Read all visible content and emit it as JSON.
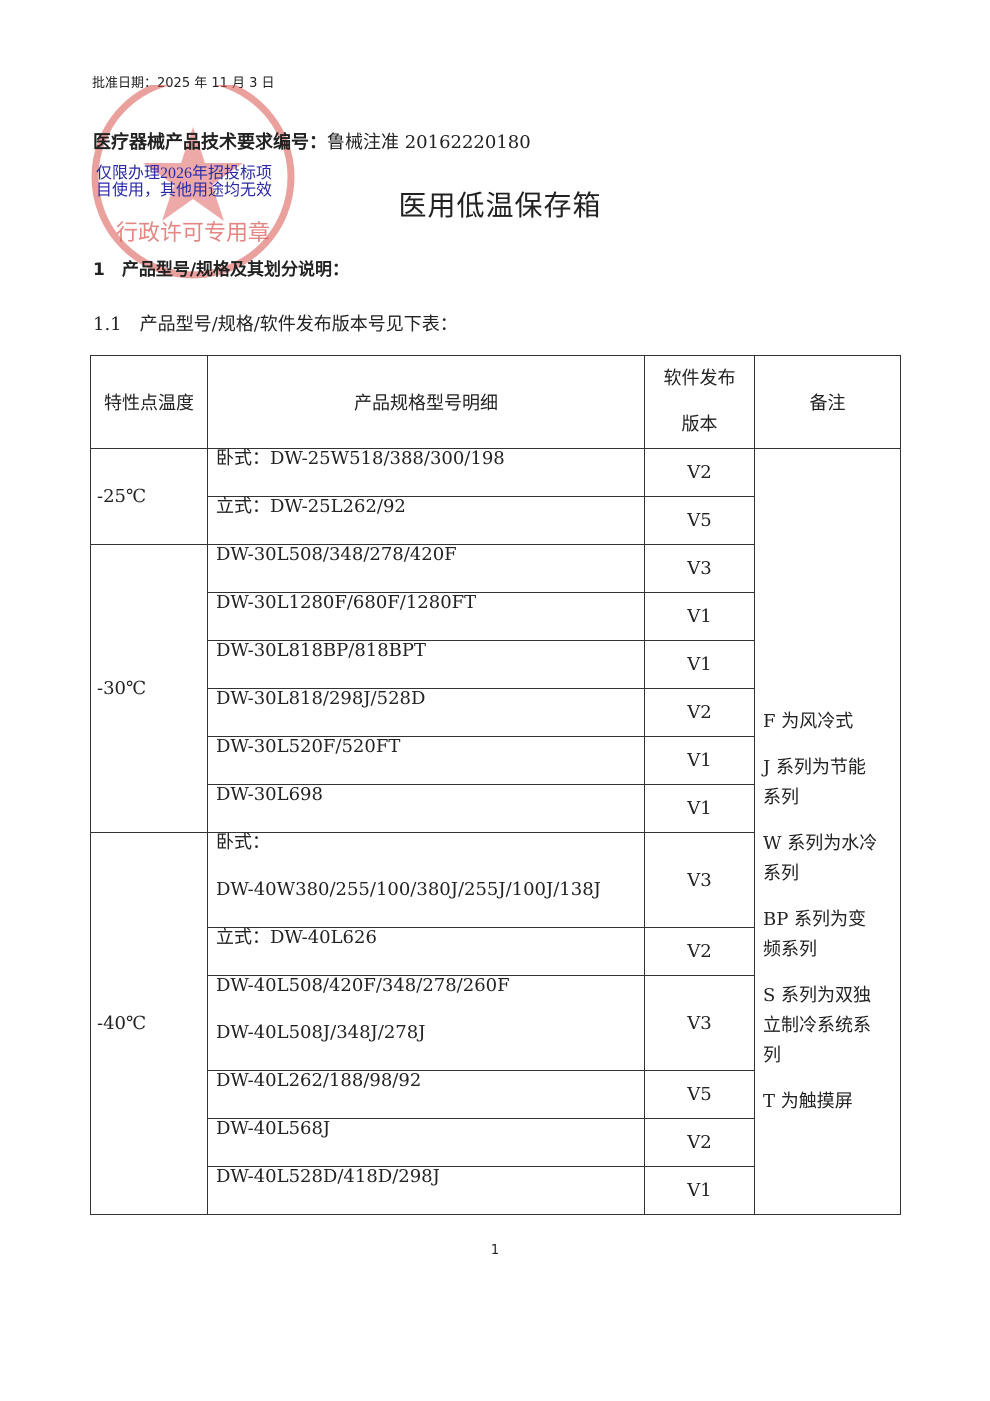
{
  "header": {
    "approval_date": "批准日期：2025 年 11 月 3 日",
    "doc_number_label": "医疗器械产品技术要求编号：",
    "doc_number": "鲁械注准 20162220180"
  },
  "stamp": {
    "text": "行政许可专用章",
    "notice": [
      "仅限办理2026年招投标项",
      "目使用，其他用途均无效"
    ]
  },
  "title": "医用低温保存箱",
  "section": {
    "heading": "1　产品型号/规格及其划分说明：",
    "subheading": "1.1　产品型号/规格/软件发布版本号见下表："
  },
  "table": {
    "headers": [
      "特性点温度",
      "产品规格型号明细",
      "软件发布版本",
      "备注"
    ],
    "groups": [
      {
        "temperature": "-25℃",
        "rows": [
          {
            "details": [
              "卧式：DW-25W518/388/300/198"
            ],
            "version": "V2"
          },
          {
            "details": [
              "立式：DW-25L262/92"
            ],
            "version": "V5"
          }
        ]
      },
      {
        "temperature": "-30℃",
        "rows": [
          {
            "details": [
              "DW-30L508/348/278/420F"
            ],
            "version": "V3"
          },
          {
            "details": [
              "DW-30L1280F/680F/1280FT"
            ],
            "version": "V1"
          },
          {
            "details": [
              "DW-30L818BP/818BPT"
            ],
            "version": "V1"
          },
          {
            "details": [
              "DW-30L818/298J/528D"
            ],
            "version": "V2"
          },
          {
            "details": [
              "DW-30L520F/520FT"
            ],
            "version": "V1"
          },
          {
            "details": [
              "DW-30L698"
            ],
            "version": "V1"
          }
        ]
      },
      {
        "temperature": "-40℃",
        "rows": [
          {
            "details": [
              "卧式：",
              "DW-40W380/255/100/380J/255J/100J/138J"
            ],
            "version": "V3"
          },
          {
            "details": [
              "立式：DW-40L626"
            ],
            "version": "V2"
          },
          {
            "details": [
              "DW-40L508/420F/348/278/260F",
              "DW-40L508J/348J/278J"
            ],
            "version": "V3"
          },
          {
            "details": [
              "DW-40L262/188/98/92"
            ],
            "version": "V5"
          },
          {
            "details": [
              "DW-40L568J"
            ],
            "version": "V2"
          },
          {
            "details": [
              "DW-40L528D/418D/298J"
            ],
            "version": "V1"
          }
        ]
      }
    ],
    "notes": [
      "F 为风冷式",
      "J 系列为节能系列",
      "W 系列为水冷系列",
      "BP 系列为变频系列",
      "S 系列为双独立制冷系统系列",
      "T 为触摸屏"
    ]
  },
  "page_number": "1"
}
